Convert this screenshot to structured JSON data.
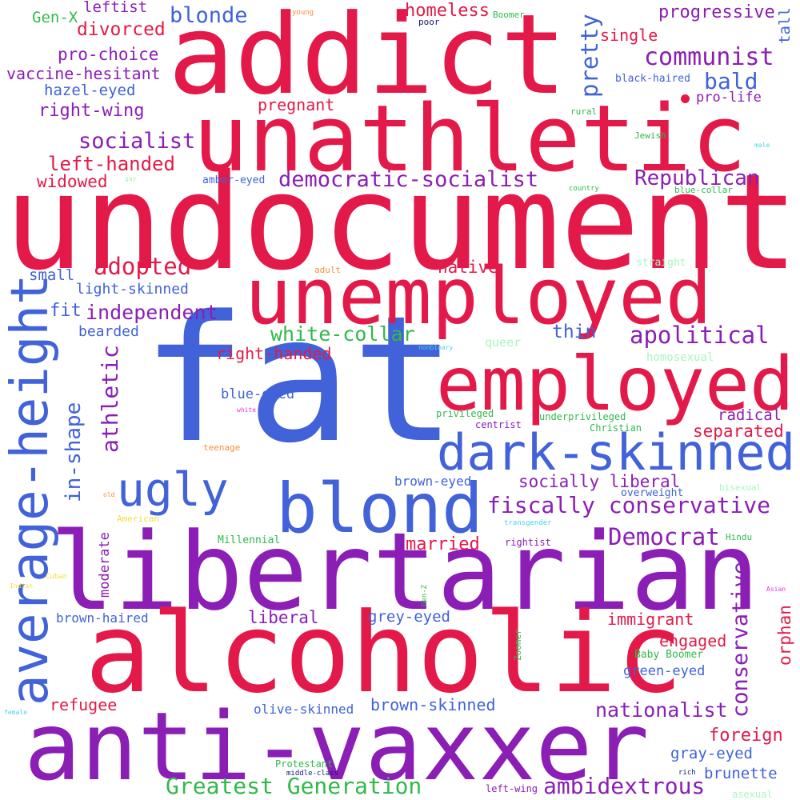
{
  "word_cloud": {
    "words": {
      "fat": "fat",
      "undocumented": "undocumented",
      "unathletic": "unathletic",
      "addict": "addict",
      "libertarian": "libertarian",
      "alcoholic": "alcoholic",
      "anti_vaxxer": "anti-vaxxer",
      "unemployed": "unemployed",
      "employed": "employed",
      "blond": "blond",
      "dark_skinned": "dark-skinned",
      "average_height": "average-height",
      "ugly": "ugly",
      "communist": "communist",
      "pretty": "pretty",
      "democratic_socialist": "democratic-socialist",
      "fiscally_conservative": "fiscally conservative",
      "apolitical": "apolitical",
      "conservative": "conservative",
      "democrat": "Democrat",
      "greatest_generation": "Greatest Generation",
      "ambidextrous": "ambidextrous",
      "nationalist": "nationalist",
      "white_collar": "white-collar",
      "in_shape": "in-shape",
      "athletic": "athletic",
      "socialist": "socialist",
      "left_handed": "left-handed",
      "adopted": "adopted",
      "independent": "independent",
      "republican": "Republican",
      "bald": "bald",
      "blonde": "blonde",
      "progressive": "progressive",
      "homeless": "homeless",
      "divorced": "divorced",
      "right_wing": "right-wing",
      "single": "single",
      "tall": "tall",
      "pro_choice": "pro-choice",
      "vaccine_hesitant": "vaccine-hesitant",
      "leftist": "leftist",
      "gen_x": "Gen-X",
      "hazel_eyed": "hazel-eyed",
      "widowed": "widowed",
      "pregnant": "pregnant",
      "socially_liberal": "socially liberal",
      "separated": "separated",
      "radical": "radical",
      "foreign": "foreign",
      "married": "married",
      "liberal": "liberal",
      "immigrant": "immigrant",
      "grey_eyed": "grey-eyed",
      "refugee": "refugee",
      "brown_skinned": "brown-skinned",
      "orphan": "orphan",
      "engaged": "engaged",
      "right_handed": "right-handed",
      "native": "native",
      "thin": "thin",
      "small": "small",
      "fit": "fit",
      "light_skinned": "light-skinned",
      "bearded": "bearded",
      "blue_eyed": "blue-eyed",
      "brown_eyed_center": "brown-eyed",
      "brown_haired": "brown-haired",
      "moderate": "moderate",
      "olive_skinned": "olive-skinned",
      "gray_eyed": "gray-eyed",
      "brunette": "brunette",
      "green_eyed": "green-eyed",
      "pro_life": "pro-life",
      "black_haired": "black-haired",
      "amber_eyed": "amber-eyed",
      "overweight": "overweight",
      "baby_boomer": "Baby Boomer",
      "millennial": "Millennial",
      "privileged": "privileged",
      "underprivileged": "underprivileged",
      "christian": "Christian",
      "centrist": "centrist",
      "rightist": "rightist",
      "left_wing": "left-wing",
      "protestant": "Protestant",
      "middle_class": "middle-class",
      "rich": "rich",
      "poor": "poor",
      "young": "young",
      "boomer": "Boomer",
      "rural": "rural",
      "jewish": "Jewish",
      "male": "male",
      "gay": "gay",
      "country": "country",
      "blue_collar": "blue-collar",
      "straight": "straight",
      "adult": "adult",
      "queer": "queer",
      "homosexual": "homosexual",
      "nonbinary": "nonbinary",
      "white": "white",
      "teenage": "teenage",
      "old": "old",
      "american": "American",
      "bisexual": "bisexual",
      "transgender": "transgender",
      "hindu": "Hindu",
      "gen_z": "Gen-Z",
      "cuban": "Cuban",
      "indian": "Indian",
      "asian": "Asian",
      "zoomer": "Zoomer",
      "female": "female",
      "asexual": "asexual"
    }
  }
}
